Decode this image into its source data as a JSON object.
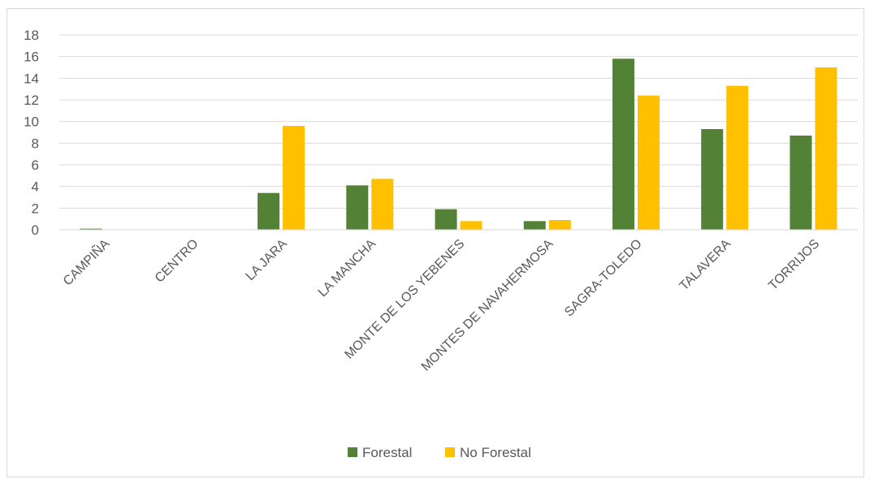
{
  "chart_data": {
    "type": "bar",
    "categories": [
      "CAMPIÑA",
      "CENTRO",
      "LA JARA",
      "LA MANCHA",
      "MONTE DE LOS YEBENES",
      "MONTES DE NAVAHERMOSA",
      "SAGRA-TOLEDO",
      "TALAVERA",
      "TORRIJOS"
    ],
    "series": [
      {
        "name": "Forestal",
        "color": "#538135",
        "values": [
          0.1,
          0,
          3.4,
          4.1,
          1.9,
          0.8,
          15.8,
          9.3,
          8.7
        ]
      },
      {
        "name": "No Forestal",
        "color": "#FFC000",
        "values": [
          0,
          0,
          9.6,
          4.7,
          0.8,
          0.9,
          12.4,
          13.3,
          15.0
        ]
      }
    ],
    "ylim": [
      0,
      18
    ],
    "yticks": [
      "0",
      "2",
      "4",
      "6",
      "8",
      "10",
      "12",
      "14",
      "16",
      "18"
    ],
    "grid": true,
    "legend_position": "bottom",
    "title": "",
    "xlabel": "",
    "ylabel": ""
  }
}
